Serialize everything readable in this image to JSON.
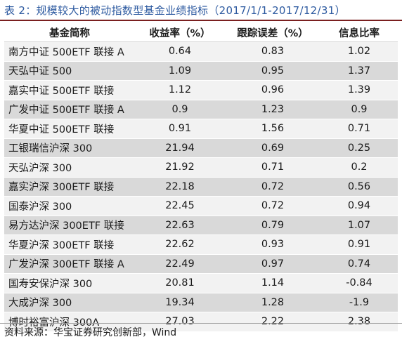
{
  "title": "表 2：规模较大的被动指数型基金业绩指标（2017/1/1-2017/12/31）",
  "table": {
    "headers": [
      "基金简称",
      "收益率（%）",
      "跟踪误差（%）",
      "信息比率"
    ],
    "rows": [
      [
        "南方中证 500ETF 联接 A",
        "0.64",
        "0.83",
        "1.02"
      ],
      [
        "天弘中证 500",
        "1.09",
        "0.95",
        "1.37"
      ],
      [
        "嘉实中证 500ETF 联接",
        "1.12",
        "0.96",
        "1.39"
      ],
      [
        "广发中证 500ETF 联接 A",
        "0.9",
        "1.23",
        "0.9"
      ],
      [
        "华夏中证 500ETF 联接",
        "0.91",
        "1.56",
        "0.71"
      ],
      [
        "工银瑞信沪深 300",
        "21.94",
        "0.69",
        "0.25"
      ],
      [
        "天弘沪深 300",
        "21.92",
        "0.71",
        "0.2"
      ],
      [
        "嘉实沪深 300ETF 联接",
        "22.18",
        "0.72",
        "0.56"
      ],
      [
        "国泰沪深 300",
        "22.45",
        "0.72",
        "0.94"
      ],
      [
        "易方达沪深 300ETF 联接",
        "22.63",
        "0.79",
        "1.07"
      ],
      [
        "华夏沪深 300ETF 联接",
        "22.62",
        "0.93",
        "0.91"
      ],
      [
        "广发沪深 300ETF 联接 A",
        "22.49",
        "0.97",
        "0.74"
      ],
      [
        "国寿安保沪深 300",
        "20.81",
        "1.14",
        "-0.84"
      ],
      [
        "大成沪深 300",
        "19.34",
        "1.28",
        "-1.9"
      ],
      [
        "博时裕富沪深 300A",
        "27.03",
        "2.22",
        "2.38"
      ]
    ]
  },
  "source": "资料来源：华宝证券研究创新部，Wind",
  "colors": {
    "title": "#2d5aa0",
    "row_light": "#f2f2f2",
    "row_dark": "#d9d9d9",
    "title_rule": "#7a1f1f"
  }
}
